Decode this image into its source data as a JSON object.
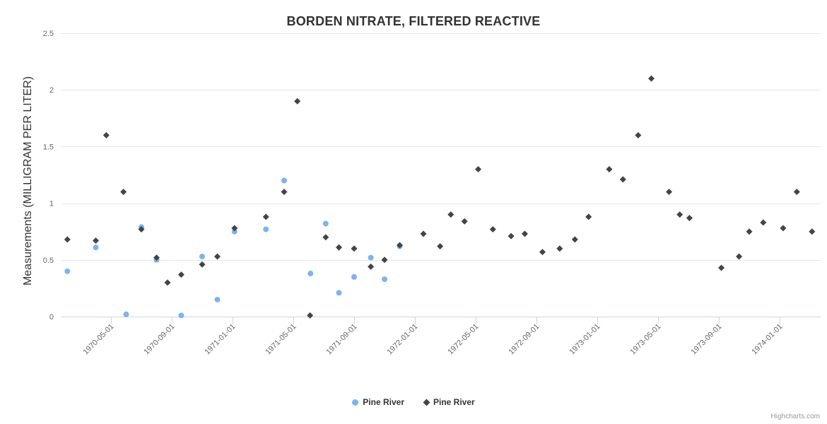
{
  "credits": "Highcharts.com",
  "colors": {
    "series1": "#7cb5ec",
    "series2": "#434348",
    "grid": "#e6e6e6",
    "axis_line": "#ccd6eb",
    "tick_label": "#666666",
    "title_text": "#333333"
  },
  "chart_data": {
    "type": "scatter",
    "title": "BORDEN NITRATE, FILTERED REACTIVE",
    "xlabel": "",
    "ylabel": "Measurements (MILLIGRAM PER LITER)",
    "ylim": [
      0,
      2.5
    ],
    "ytick_labels": [
      "0",
      "0.5",
      "1",
      "1.5",
      "2",
      "2.5"
    ],
    "yticks": [
      0,
      0.5,
      1,
      1.5,
      2,
      2.5
    ],
    "xtick_labels": [
      "1970-05-01",
      "1970-09-01",
      "1971-01-01",
      "1971-05-01",
      "1971-09-01",
      "1972-01-01",
      "1972-05-01",
      "1972-09-01",
      "1973-01-01",
      "1973-05-01",
      "1973-09-01",
      "1974-01-01"
    ],
    "grid": true,
    "legend_position": "bottom-center",
    "series": [
      {
        "name": "Pine River",
        "color": "#7cb5ec",
        "marker": "circle",
        "data": [
          [
            "1970-02-05",
            0.4
          ],
          [
            "1970-04-01",
            0.61
          ],
          [
            "1970-06-01",
            0.02
          ],
          [
            "1970-07-01",
            0.79
          ],
          [
            "1970-08-01",
            0.5
          ],
          [
            "1970-09-20",
            0.01
          ],
          [
            "1970-11-01",
            0.53
          ],
          [
            "1970-12-01",
            0.15
          ],
          [
            "1971-01-05",
            0.75
          ],
          [
            "1971-03-07",
            0.77
          ],
          [
            "1971-04-13",
            1.2
          ],
          [
            "1971-06-05",
            0.38
          ],
          [
            "1971-07-05",
            0.82
          ],
          [
            "1971-08-01",
            0.21
          ],
          [
            "1971-09-01",
            0.35
          ],
          [
            "1971-10-04",
            0.52
          ],
          [
            "1971-11-01",
            0.33
          ],
          [
            "1971-12-01",
            0.62
          ]
        ]
      },
      {
        "name": "Pine River",
        "color": "#434348",
        "marker": "diamond",
        "data": [
          [
            "1970-02-05",
            0.68
          ],
          [
            "1970-04-01",
            0.67
          ],
          [
            "1970-04-22",
            1.6
          ],
          [
            "1970-05-26",
            1.1
          ],
          [
            "1970-07-01",
            0.77
          ],
          [
            "1970-08-01",
            0.52
          ],
          [
            "1970-08-23",
            0.3
          ],
          [
            "1970-09-20",
            0.37
          ],
          [
            "1970-11-01",
            0.46
          ],
          [
            "1970-12-01",
            0.53
          ],
          [
            "1971-01-05",
            0.78
          ],
          [
            "1971-03-07",
            0.88
          ],
          [
            "1971-04-13",
            1.1
          ],
          [
            "1971-05-09",
            1.9
          ],
          [
            "1971-06-04",
            0.01
          ],
          [
            "1971-07-05",
            0.7
          ],
          [
            "1971-08-01",
            0.61
          ],
          [
            "1971-09-01",
            0.6
          ],
          [
            "1971-10-04",
            0.44
          ],
          [
            "1971-11-01",
            0.5
          ],
          [
            "1971-12-01",
            0.63
          ],
          [
            "1972-01-18",
            0.73
          ],
          [
            "1972-02-21",
            0.62
          ],
          [
            "1972-03-12",
            0.9
          ],
          [
            "1972-04-09",
            0.84
          ],
          [
            "1972-05-06",
            1.3
          ],
          [
            "1972-06-05",
            0.77
          ],
          [
            "1972-07-11",
            0.71
          ],
          [
            "1972-08-08",
            0.73
          ],
          [
            "1972-09-13",
            0.57
          ],
          [
            "1972-10-17",
            0.6
          ],
          [
            "1972-11-17",
            0.68
          ],
          [
            "1972-12-14",
            0.88
          ],
          [
            "1973-01-25",
            1.3
          ],
          [
            "1973-02-22",
            1.21
          ],
          [
            "1973-03-22",
            1.6
          ],
          [
            "1973-04-18",
            2.1
          ],
          [
            "1973-05-23",
            1.1
          ],
          [
            "1973-06-14",
            0.9
          ],
          [
            "1973-07-03",
            0.87
          ],
          [
            "1973-09-06",
            0.43
          ],
          [
            "1973-10-11",
            0.53
          ],
          [
            "1973-11-01",
            0.75
          ],
          [
            "1973-11-29",
            0.83
          ],
          [
            "1974-01-08",
            0.78
          ],
          [
            "1974-02-05",
            1.1
          ],
          [
            "1974-03-05",
            0.75
          ]
        ]
      }
    ]
  }
}
